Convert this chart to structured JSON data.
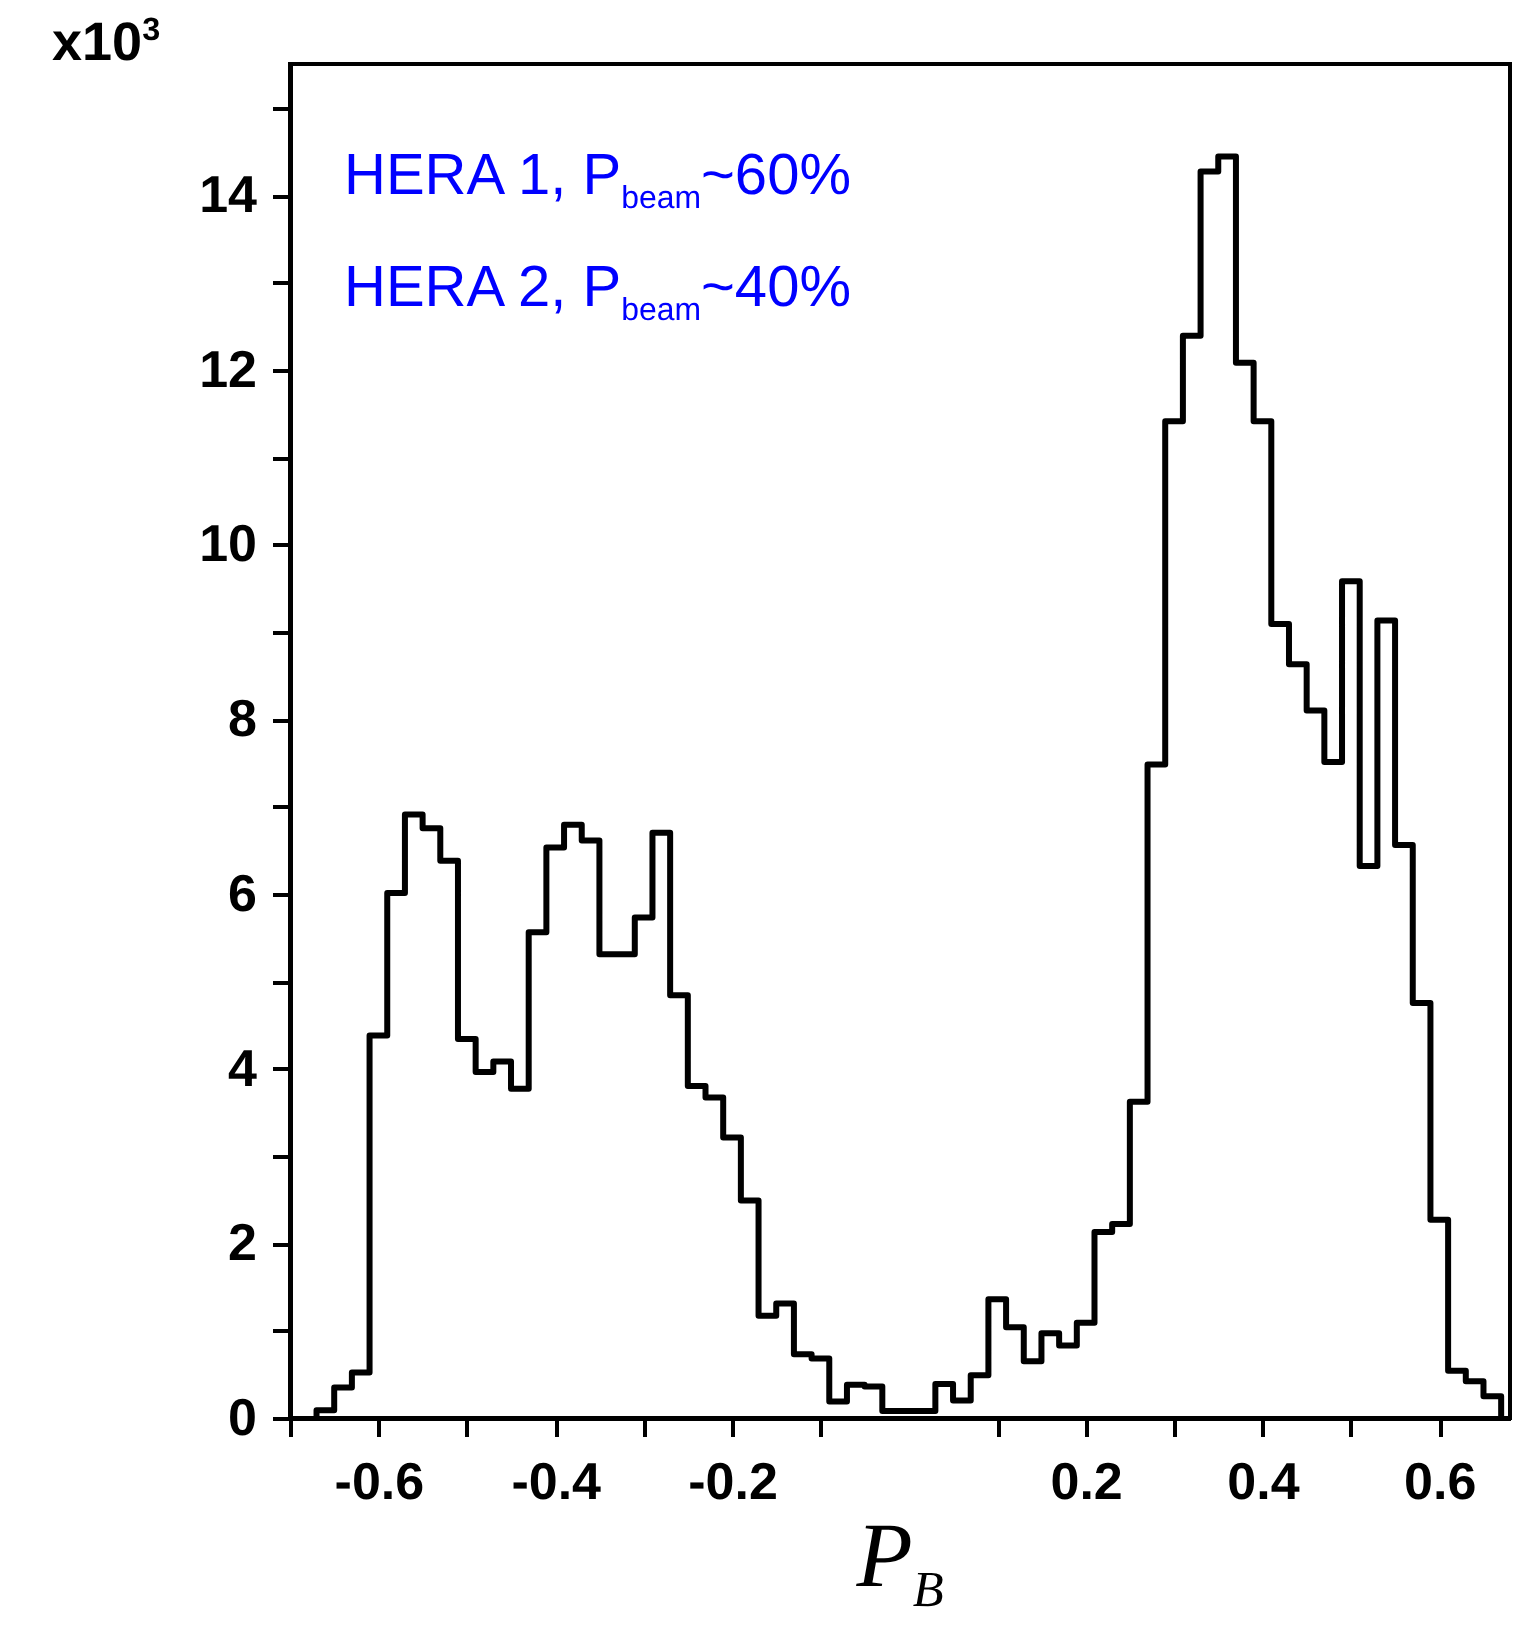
{
  "chart_data": {
    "type": "histogram",
    "xlabel": "P$_{B}$",
    "ylabel": "x10$^{3}$",
    "annotations": [
      "HERA 1, P$_{beam}$~60%",
      "HERA 2, P$_{beam}$~40%"
    ],
    "bins": [
      -0.67,
      -0.65,
      -0.63,
      -0.61,
      -0.59,
      -0.57,
      -0.55,
      -0.53,
      -0.51,
      -0.49,
      -0.47,
      -0.45,
      -0.43,
      -0.41,
      -0.39,
      -0.37,
      -0.35,
      -0.33,
      -0.31,
      -0.29,
      -0.27,
      -0.25,
      -0.23,
      -0.21,
      -0.19,
      -0.17,
      -0.15,
      -0.13,
      -0.11,
      -0.09,
      -0.07,
      -0.05,
      -0.03,
      -0.01,
      0.01,
      0.03,
      0.05,
      0.07,
      0.09,
      0.11,
      0.13,
      0.15,
      0.17,
      0.19,
      0.21,
      0.23,
      0.25,
      0.27,
      0.29,
      0.31,
      0.33,
      0.35,
      0.37,
      0.39,
      0.41,
      0.43,
      0.45,
      0.47,
      0.49,
      0.51,
      0.53,
      0.55,
      0.57,
      0.59,
      0.61,
      0.63,
      0.65,
      0.67
    ],
    "values": [
      0.09,
      0.35,
      0.52,
      4.38,
      6.01,
      6.91,
      6.75,
      6.38,
      4.34,
      3.96,
      4.08,
      3.77,
      5.56,
      6.53,
      6.79,
      6.61,
      5.31,
      5.31,
      5.73,
      6.7,
      4.84,
      3.8,
      3.67,
      3.21,
      2.49,
      1.17,
      1.31,
      0.73,
      0.68,
      0.19,
      0.38,
      0.36,
      0.08,
      0.08,
      0.08,
      0.39,
      0.2,
      0.49,
      1.36,
      1.04,
      0.65,
      0.97,
      0.83,
      1.09,
      2.13,
      2.22,
      3.62,
      7.48,
      11.41,
      12.39,
      14.27,
      14.44,
      12.08,
      11.41,
      9.09,
      8.63,
      8.1,
      7.51,
      9.58,
      6.32,
      9.13,
      6.56,
      4.75,
      2.27,
      0.54,
      0.42,
      0.25
    ],
    "color": "#000000",
    "xlim": [
      -0.7,
      0.68
    ],
    "ylim": [
      0,
      15.5
    ],
    "xticks": [
      {
        "value": -0.7,
        "label": null
      },
      -0.6,
      {
        "value": -0.5,
        "label": null
      },
      -0.4,
      {
        "value": -0.3,
        "label": null
      },
      -0.2,
      {
        "value": -0.1,
        "label": null
      },
      {
        "value": 0.1,
        "label": null
      },
      0.2,
      {
        "value": 0.3,
        "label": null
      },
      0.4,
      {
        "value": 0.5,
        "label": null
      },
      0.6
    ],
    "yticks": [
      0,
      {
        "value": 1,
        "label": null
      },
      2,
      {
        "value": 3,
        "label": null
      },
      4,
      {
        "value": 5,
        "label": null
      },
      6,
      {
        "value": 7,
        "label": null
      },
      8,
      {
        "value": 9,
        "label": null
      },
      10,
      {
        "value": 11,
        "label": null
      },
      12,
      {
        "value": 13,
        "label": null
      },
      14,
      {
        "value": 15,
        "label": null
      }
    ]
  }
}
